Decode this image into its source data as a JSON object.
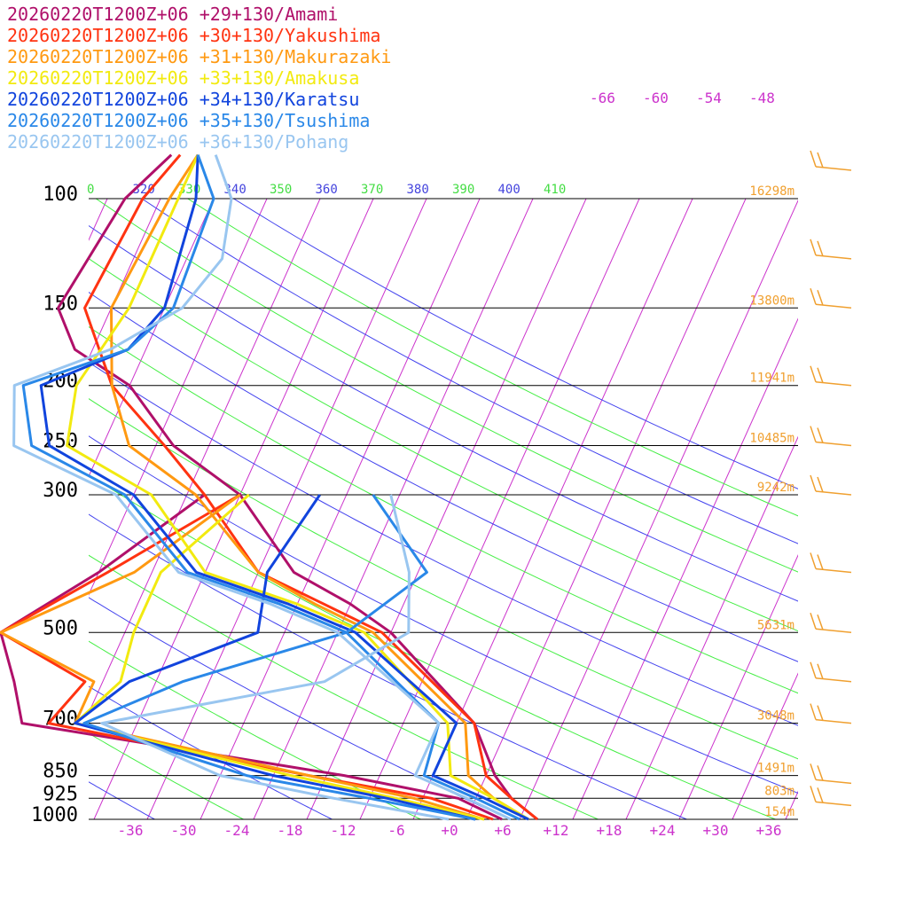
{
  "chart_data": {
    "type": "line",
    "title": "",
    "xlabel": "",
    "ylabel": "",
    "x_axis": {
      "units": "temperature (°C), skewed",
      "xlim": [
        -40,
        40
      ],
      "tick_labels": [
        "-36",
        "-30",
        "-24",
        "-18",
        "-12",
        "-6",
        "+0",
        "+6",
        "+12",
        "+18",
        "+24",
        "+30",
        "+36"
      ]
    },
    "y_axis": {
      "units": "pressure (hPa), log scale",
      "ylim": [
        1000,
        100
      ],
      "tick_labels": [
        "100",
        "150",
        "200",
        "250",
        "300",
        "500",
        "700",
        "850",
        "925",
        "1000"
      ]
    },
    "upper_isotherm_labels": [
      "-66",
      "-60",
      "-54",
      "-48"
    ],
    "theta_labels": [
      {
        "text": "0",
        "kind": "dry"
      },
      {
        "text": "320",
        "kind": "moist"
      },
      {
        "text": "330",
        "kind": "dry"
      },
      {
        "text": "340",
        "kind": "moist"
      },
      {
        "text": "350",
        "kind": "dry"
      },
      {
        "text": "360",
        "kind": "moist"
      },
      {
        "text": "370",
        "kind": "dry"
      },
      {
        "text": "380",
        "kind": "moist"
      },
      {
        "text": "390",
        "kind": "dry"
      },
      {
        "text": "400",
        "kind": "moist"
      },
      {
        "text": "410",
        "kind": "dry"
      }
    ],
    "height_labels": [
      {
        "p": 100,
        "text": "16298m"
      },
      {
        "p": 150,
        "text": "13800m"
      },
      {
        "p": 200,
        "text": "11941m"
      },
      {
        "p": 250,
        "text": "10485m"
      },
      {
        "p": 300,
        "text": "9242m"
      },
      {
        "p": 500,
        "text": "5631m"
      },
      {
        "p": 700,
        "text": "3048m"
      },
      {
        "p": 850,
        "text": "1491m"
      },
      {
        "p": 925,
        "text": "803m"
      },
      {
        "p": 1000,
        "text": "154m"
      }
    ],
    "grid": true,
    "legend_position": "top-left",
    "wind_barbs": {
      "color": "#f0a030",
      "levels": [
        90,
        125,
        150,
        200,
        250,
        300,
        400,
        500,
        600,
        700,
        875,
        950
      ]
    },
    "series": [
      {
        "name": "20260220T1200Z+06 +29+130/Amami",
        "color": "#b0106a",
        "temp": [
          [
            85,
            -65
          ],
          [
            100,
            -68
          ],
          [
            150,
            -70
          ],
          [
            175,
            -66
          ],
          [
            200,
            -58
          ],
          [
            250,
            -50
          ],
          [
            300,
            -40
          ],
          [
            400,
            -30
          ],
          [
            450,
            -22
          ],
          [
            500,
            -16
          ],
          [
            700,
            -2
          ],
          [
            850,
            3
          ],
          [
            925,
            6
          ],
          [
            1000,
            10
          ]
        ],
        "dew": [
          [
            300,
            -44
          ],
          [
            400,
            -52
          ],
          [
            500,
            -60
          ],
          [
            600,
            -56
          ],
          [
            700,
            -53
          ],
          [
            850,
            -14
          ],
          [
            925,
            0
          ],
          [
            1000,
            6
          ]
        ]
      },
      {
        "name": "20260220T1200Z+06 +30+130/Yakushima",
        "color": "#ff3311",
        "temp": [
          [
            85,
            -64
          ],
          [
            100,
            -66
          ],
          [
            150,
            -67
          ],
          [
            200,
            -60
          ],
          [
            250,
            -51
          ],
          [
            300,
            -44
          ],
          [
            400,
            -34
          ],
          [
            450,
            -25
          ],
          [
            500,
            -17
          ],
          [
            700,
            -2
          ],
          [
            850,
            2
          ],
          [
            925,
            6
          ],
          [
            1000,
            10
          ]
        ],
        "dew": [
          [
            300,
            -40
          ],
          [
            400,
            -51
          ],
          [
            500,
            -60
          ],
          [
            600,
            -48
          ],
          [
            700,
            -50
          ],
          [
            850,
            -18
          ],
          [
            925,
            -3
          ],
          [
            1000,
            5
          ]
        ]
      },
      {
        "name": "20260220T1200Z+06 +31+130/Makurazaki",
        "color": "#ff9911",
        "temp": [
          [
            85,
            -62
          ],
          [
            100,
            -63
          ],
          [
            150,
            -64
          ],
          [
            200,
            -60
          ],
          [
            250,
            -55
          ],
          [
            300,
            -45
          ],
          [
            400,
            -34
          ],
          [
            450,
            -26
          ],
          [
            500,
            -18
          ],
          [
            700,
            -3
          ],
          [
            850,
            0
          ],
          [
            925,
            4
          ],
          [
            1000,
            9
          ]
        ],
        "dew": [
          [
            300,
            -40
          ],
          [
            400,
            -48
          ],
          [
            500,
            -60
          ],
          [
            600,
            -47
          ],
          [
            700,
            -47
          ],
          [
            850,
            -18
          ],
          [
            925,
            -5
          ],
          [
            1000,
            4
          ]
        ]
      },
      {
        "name": "20260220T1200Z+06 +33+130/Amakusa",
        "color": "#f2ea10",
        "temp": [
          [
            85,
            -62
          ],
          [
            100,
            -62
          ],
          [
            150,
            -62
          ],
          [
            200,
            -64
          ],
          [
            250,
            -62
          ],
          [
            300,
            -50
          ],
          [
            400,
            -40
          ],
          [
            450,
            -28
          ],
          [
            500,
            -19
          ],
          [
            700,
            -5
          ],
          [
            850,
            -2
          ],
          [
            925,
            4
          ],
          [
            1000,
            9
          ]
        ],
        "dew": [
          [
            300,
            -39
          ],
          [
            400,
            -45
          ],
          [
            500,
            -45
          ],
          [
            600,
            -44
          ],
          [
            700,
            -47
          ],
          [
            850,
            -20
          ],
          [
            925,
            -7
          ],
          [
            1000,
            4
          ]
        ]
      },
      {
        "name": "20260220T1200Z+06 +34+130/Karatsu",
        "color": "#1144dd",
        "temp": [
          [
            85,
            -62
          ],
          [
            100,
            -60
          ],
          [
            150,
            -58
          ],
          [
            175,
            -60
          ],
          [
            200,
            -68
          ],
          [
            250,
            -64
          ],
          [
            300,
            -52
          ],
          [
            400,
            -41
          ],
          [
            450,
            -29
          ],
          [
            500,
            -20
          ],
          [
            700,
            -4
          ],
          [
            850,
            -4
          ],
          [
            925,
            3
          ],
          [
            1000,
            9
          ]
        ],
        "dew": [
          [
            300,
            -31
          ],
          [
            400,
            -33
          ],
          [
            500,
            -31
          ],
          [
            600,
            -43
          ],
          [
            700,
            -47
          ],
          [
            850,
            -22
          ],
          [
            925,
            -8
          ],
          [
            1000,
            3
          ]
        ]
      },
      {
        "name": "20260220T1200Z+06 +35+130/Tsushima",
        "color": "#2a88e8",
        "temp": [
          [
            85,
            -62
          ],
          [
            100,
            -58
          ],
          [
            150,
            -57
          ],
          [
            175,
            -60
          ],
          [
            200,
            -70
          ],
          [
            250,
            -66
          ],
          [
            300,
            -53
          ],
          [
            400,
            -42
          ],
          [
            450,
            -30
          ],
          [
            500,
            -21
          ],
          [
            700,
            -6
          ],
          [
            850,
            -5
          ],
          [
            925,
            2
          ],
          [
            1000,
            8
          ]
        ],
        "dew": [
          [
            300,
            -25
          ],
          [
            400,
            -15
          ],
          [
            500,
            -21
          ],
          [
            600,
            -37
          ],
          [
            700,
            -46
          ],
          [
            850,
            -25
          ],
          [
            925,
            -10
          ],
          [
            1000,
            3
          ]
        ]
      },
      {
        "name": "20260220T1200Z+06 +36+130/Pohang",
        "color": "#99c6f0",
        "temp": [
          [
            85,
            -60
          ],
          [
            100,
            -56
          ],
          [
            125,
            -54
          ],
          [
            150,
            -56
          ],
          [
            175,
            -62
          ],
          [
            200,
            -71
          ],
          [
            250,
            -68
          ],
          [
            300,
            -54
          ],
          [
            400,
            -43
          ],
          [
            450,
            -31
          ],
          [
            500,
            -22
          ],
          [
            700,
            -6
          ],
          [
            850,
            -6
          ],
          [
            925,
            1
          ],
          [
            1000,
            7
          ]
        ],
        "dew": [
          [
            300,
            -23
          ],
          [
            400,
            -17
          ],
          [
            500,
            -14
          ],
          [
            600,
            -21
          ],
          [
            700,
            -44
          ],
          [
            850,
            -28
          ],
          [
            925,
            -14
          ],
          [
            1000,
            0
          ]
        ]
      }
    ]
  }
}
